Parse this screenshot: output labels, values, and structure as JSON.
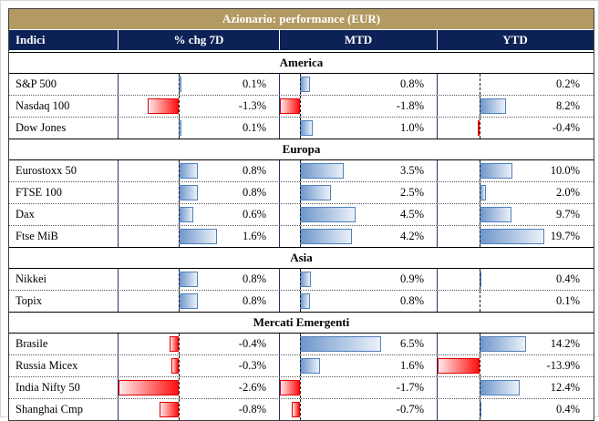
{
  "title": "Azionario: performance (EUR)",
  "columns": {
    "indici": "Indici",
    "chg7d": "% chg 7D",
    "mtd": "MTD",
    "ytd": "YTD"
  },
  "colors": {
    "title_bg": "#b39a62",
    "header_bg": "#0c2156",
    "positive_bar_dark": "#6e96cb",
    "positive_bar_light": "#ecf1f9",
    "positive_bar_border": "#4f81bd",
    "negative_bar_dark": "#ff0f0f",
    "negative_bar_light": "#ffe9e9",
    "negative_bar_border": "#e00000"
  },
  "sections": [
    {
      "name": "America",
      "rows": [
        {
          "label": "S&P 500",
          "chg7d": "0.1%",
          "mtd": "0.8%",
          "ytd": "0.2%"
        },
        {
          "label": "Nasdaq 100",
          "chg7d": "-1.3%",
          "mtd": "-1.8%",
          "ytd": "8.2%"
        },
        {
          "label": "Dow Jones",
          "chg7d": "0.1%",
          "mtd": "1.0%",
          "ytd": "-0.4%"
        }
      ]
    },
    {
      "name": "Europa",
      "rows": [
        {
          "label": "Eurostoxx 50",
          "chg7d": "0.8%",
          "mtd": "3.5%",
          "ytd": "10.0%"
        },
        {
          "label": "FTSE 100",
          "chg7d": "0.8%",
          "mtd": "2.5%",
          "ytd": "2.0%"
        },
        {
          "label": "Dax",
          "chg7d": "0.6%",
          "mtd": "4.5%",
          "ytd": "9.7%"
        },
        {
          "label": "Ftse MiB",
          "chg7d": "1.6%",
          "mtd": "4.2%",
          "ytd": "19.7%"
        }
      ]
    },
    {
      "name": "Asia",
      "rows": [
        {
          "label": "Nikkei",
          "chg7d": "0.8%",
          "mtd": "0.9%",
          "ytd": "0.4%"
        },
        {
          "label": "Topix",
          "chg7d": "0.8%",
          "mtd": "0.8%",
          "ytd": "0.1%"
        }
      ]
    },
    {
      "name": "Mercati Emergenti",
      "rows": [
        {
          "label": "Brasile",
          "chg7d": "-0.4%",
          "mtd": "6.5%",
          "ytd": "14.2%"
        },
        {
          "label": "Russia Micex",
          "chg7d": "-0.3%",
          "mtd": "1.6%",
          "ytd": "-13.9%"
        },
        {
          "label": "India Nifty 50",
          "chg7d": "-2.6%",
          "mtd": "-1.7%",
          "ytd": "12.4%"
        },
        {
          "label": "Shanghai Cmp",
          "chg7d": "-0.8%",
          "mtd": "-0.7%",
          "ytd": "0.4%"
        }
      ]
    }
  ],
  "chart_data": {
    "type": "bar",
    "title": "Azionario: performance (EUR)",
    "orientation": "horizontal",
    "legend_position": "none",
    "grid": false,
    "categories": [
      "S&P 500",
      "Nasdaq 100",
      "Dow Jones",
      "Eurostoxx 50",
      "FTSE 100",
      "Dax",
      "Ftse MiB",
      "Nikkei",
      "Topix",
      "Brasile",
      "Russia Micex",
      "India Nifty 50",
      "Shanghai Cmp"
    ],
    "groups": {
      "America": [
        "S&P 500",
        "Nasdaq 100",
        "Dow Jones"
      ],
      "Europa": [
        "Eurostoxx 50",
        "FTSE 100",
        "Dax",
        "Ftse MiB"
      ],
      "Asia": [
        "Nikkei",
        "Topix"
      ],
      "Mercati Emergenti": [
        "Brasile",
        "Russia Micex",
        "India Nifty 50",
        "Shanghai Cmp"
      ]
    },
    "series": [
      {
        "name": "% chg 7D",
        "values": [
          0.1,
          -1.3,
          0.1,
          0.8,
          0.8,
          0.6,
          1.6,
          0.8,
          0.8,
          -0.4,
          -0.3,
          -2.6,
          -0.8
        ]
      },
      {
        "name": "MTD",
        "values": [
          0.8,
          -1.8,
          1.0,
          3.5,
          2.5,
          4.5,
          4.2,
          0.9,
          0.8,
          6.5,
          1.6,
          -1.7,
          -0.7
        ]
      },
      {
        "name": "YTD",
        "values": [
          0.2,
          8.2,
          -0.4,
          10.0,
          2.0,
          9.7,
          19.7,
          0.4,
          0.1,
          14.2,
          -13.9,
          12.4,
          0.4
        ]
      }
    ],
    "value_unit": "%",
    "positive_color": "#6e96cb",
    "negative_color": "#ff0f0f"
  }
}
